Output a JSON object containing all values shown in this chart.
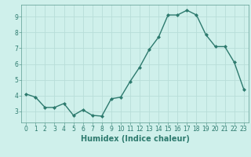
{
  "x": [
    0,
    1,
    2,
    3,
    4,
    5,
    6,
    7,
    8,
    9,
    10,
    11,
    12,
    13,
    14,
    15,
    16,
    17,
    18,
    19,
    20,
    21,
    22,
    23
  ],
  "y": [
    4.1,
    3.9,
    3.25,
    3.25,
    3.5,
    2.75,
    3.1,
    2.75,
    2.7,
    3.8,
    3.9,
    4.9,
    5.8,
    6.9,
    7.7,
    9.1,
    9.1,
    9.4,
    9.1,
    7.85,
    7.1,
    7.1,
    6.1,
    4.4
  ],
  "line_color": "#2d7a6e",
  "marker": "D",
  "markersize": 2.0,
  "linewidth": 1.0,
  "xlabel": "Humidex (Indice chaleur)",
  "xlabel_fontsize": 7,
  "xlabel_fontweight": "bold",
  "xlim": [
    -0.5,
    23.5
  ],
  "ylim": [
    2.3,
    9.75
  ],
  "yticks": [
    3,
    4,
    5,
    6,
    7,
    8,
    9
  ],
  "xticks": [
    0,
    1,
    2,
    3,
    4,
    5,
    6,
    7,
    8,
    9,
    10,
    11,
    12,
    13,
    14,
    15,
    16,
    17,
    18,
    19,
    20,
    21,
    22,
    23
  ],
  "bg_color": "#cff0eb",
  "grid_color": "#b8ddd8",
  "tick_fontsize": 5.5,
  "fig_bg": "#cff0eb",
  "spine_color": "#5a9a90"
}
